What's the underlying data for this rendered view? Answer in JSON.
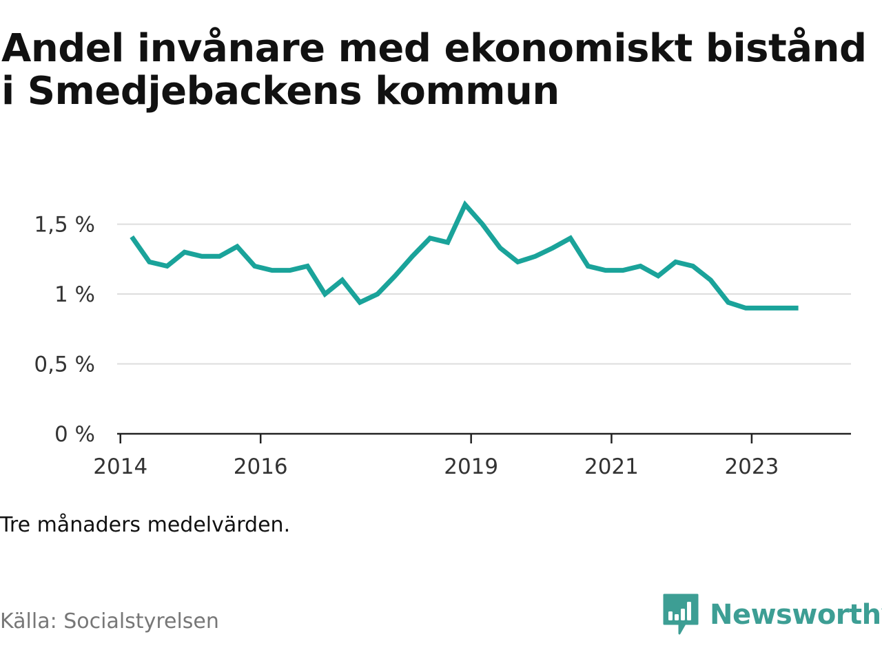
{
  "title": "Andel invånare med ekonomiskt bistånd i Smedjebackens kommun",
  "note": "Tre månaders medelvärden.",
  "source": "Källa: Socialstyrelsen",
  "brand": {
    "name": "Newsworthy",
    "icon": "newsworthy-logo-icon",
    "color": "#3d9e94"
  },
  "colors": {
    "line": "#1aa39a",
    "grid": "#dddddd",
    "axis": "#222222",
    "text": "#333333"
  },
  "chart_data": {
    "type": "line",
    "title": "Andel invånare med ekonomiskt bistånd i Smedjebackens kommun",
    "xlabel": "",
    "ylabel": "",
    "ylim": [
      0,
      1.7
    ],
    "xlim": [
      "2013-12-15",
      "2024-06-01"
    ],
    "x_ticks": [
      {
        "date": "2014-01-01",
        "label": "2014"
      },
      {
        "date": "2016-01-01",
        "label": "2016"
      },
      {
        "date": "2019-01-01",
        "label": "2019"
      },
      {
        "date": "2021-01-01",
        "label": "2021"
      },
      {
        "date": "2023-01-01",
        "label": "2023"
      }
    ],
    "y_ticks": [
      {
        "value": 0,
        "label": "0 %"
      },
      {
        "value": 0.5,
        "label": "0,5 %"
      },
      {
        "value": 1.0,
        "label": "1 %"
      },
      {
        "value": 1.5,
        "label": "1,5 %"
      }
    ],
    "grid": true,
    "series": [
      {
        "values": [
          {
            "x": "2014-03-01",
            "y": 1.41
          },
          {
            "x": "2014-06-01",
            "y": 1.23
          },
          {
            "x": "2014-09-01",
            "y": 1.2
          },
          {
            "x": "2014-12-01",
            "y": 1.3
          },
          {
            "x": "2015-03-01",
            "y": 1.27
          },
          {
            "x": "2015-06-01",
            "y": 1.27
          },
          {
            "x": "2015-09-01",
            "y": 1.34
          },
          {
            "x": "2015-12-01",
            "y": 1.2
          },
          {
            "x": "2016-03-01",
            "y": 1.17
          },
          {
            "x": "2016-06-01",
            "y": 1.17
          },
          {
            "x": "2016-09-01",
            "y": 1.2
          },
          {
            "x": "2016-12-01",
            "y": 1.0
          },
          {
            "x": "2017-03-01",
            "y": 1.1
          },
          {
            "x": "2017-06-01",
            "y": 0.94
          },
          {
            "x": "2017-09-01",
            "y": 1.0
          },
          {
            "x": "2017-12-01",
            "y": 1.13
          },
          {
            "x": "2018-03-01",
            "y": 1.27
          },
          {
            "x": "2018-06-01",
            "y": 1.4
          },
          {
            "x": "2018-09-01",
            "y": 1.37
          },
          {
            "x": "2018-12-01",
            "y": 1.64
          },
          {
            "x": "2019-03-01",
            "y": 1.5
          },
          {
            "x": "2019-06-01",
            "y": 1.33
          },
          {
            "x": "2019-09-01",
            "y": 1.23
          },
          {
            "x": "2019-12-01",
            "y": 1.27
          },
          {
            "x": "2020-03-01",
            "y": 1.33
          },
          {
            "x": "2020-06-01",
            "y": 1.4
          },
          {
            "x": "2020-09-01",
            "y": 1.2
          },
          {
            "x": "2020-12-01",
            "y": 1.17
          },
          {
            "x": "2021-03-01",
            "y": 1.17
          },
          {
            "x": "2021-06-01",
            "y": 1.2
          },
          {
            "x": "2021-09-01",
            "y": 1.13
          },
          {
            "x": "2021-12-01",
            "y": 1.23
          },
          {
            "x": "2022-03-01",
            "y": 1.2
          },
          {
            "x": "2022-06-01",
            "y": 1.1
          },
          {
            "x": "2022-09-01",
            "y": 0.94
          },
          {
            "x": "2022-12-01",
            "y": 0.9
          },
          {
            "x": "2023-03-01",
            "y": 0.9
          },
          {
            "x": "2023-06-01",
            "y": 0.9
          },
          {
            "x": "2023-09-01",
            "y": 0.9
          }
        ]
      }
    ]
  }
}
